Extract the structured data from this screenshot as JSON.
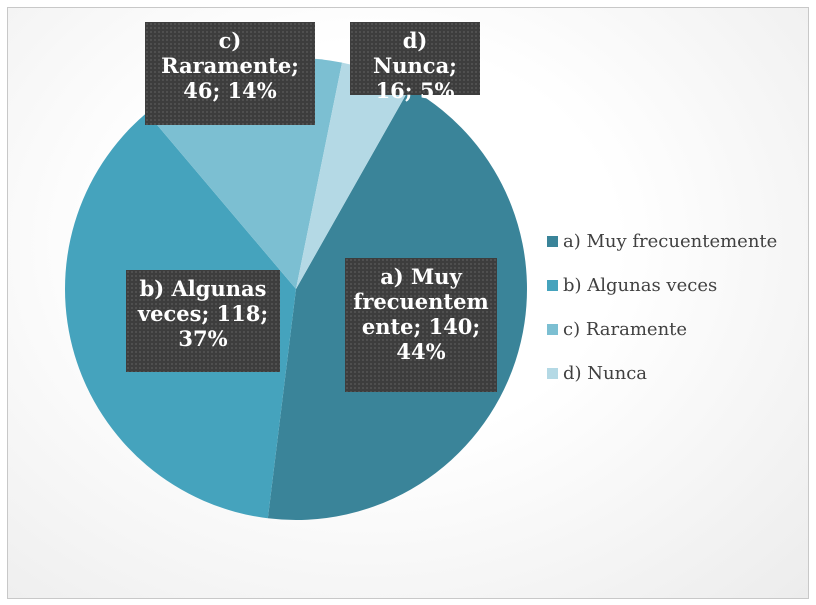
{
  "chart_data": {
    "type": "pie",
    "categories": [
      "a) Muy frecuentemente",
      "b) Algunas veces",
      "c) Raramente",
      "d) Nunca"
    ],
    "values": [
      140,
      118,
      46,
      16
    ],
    "value_labels": [
      "a) Muy frecuentemente; 140; 44%",
      "b) Algunas veces; 118; 37%",
      "c) Raramente; 46; 14%",
      "d) Nunca; 16; 5%"
    ],
    "colors": [
      "#3a8499",
      "#45a3bd",
      "#7cbfd2",
      "#b4d9e5"
    ],
    "legend": "right"
  }
}
